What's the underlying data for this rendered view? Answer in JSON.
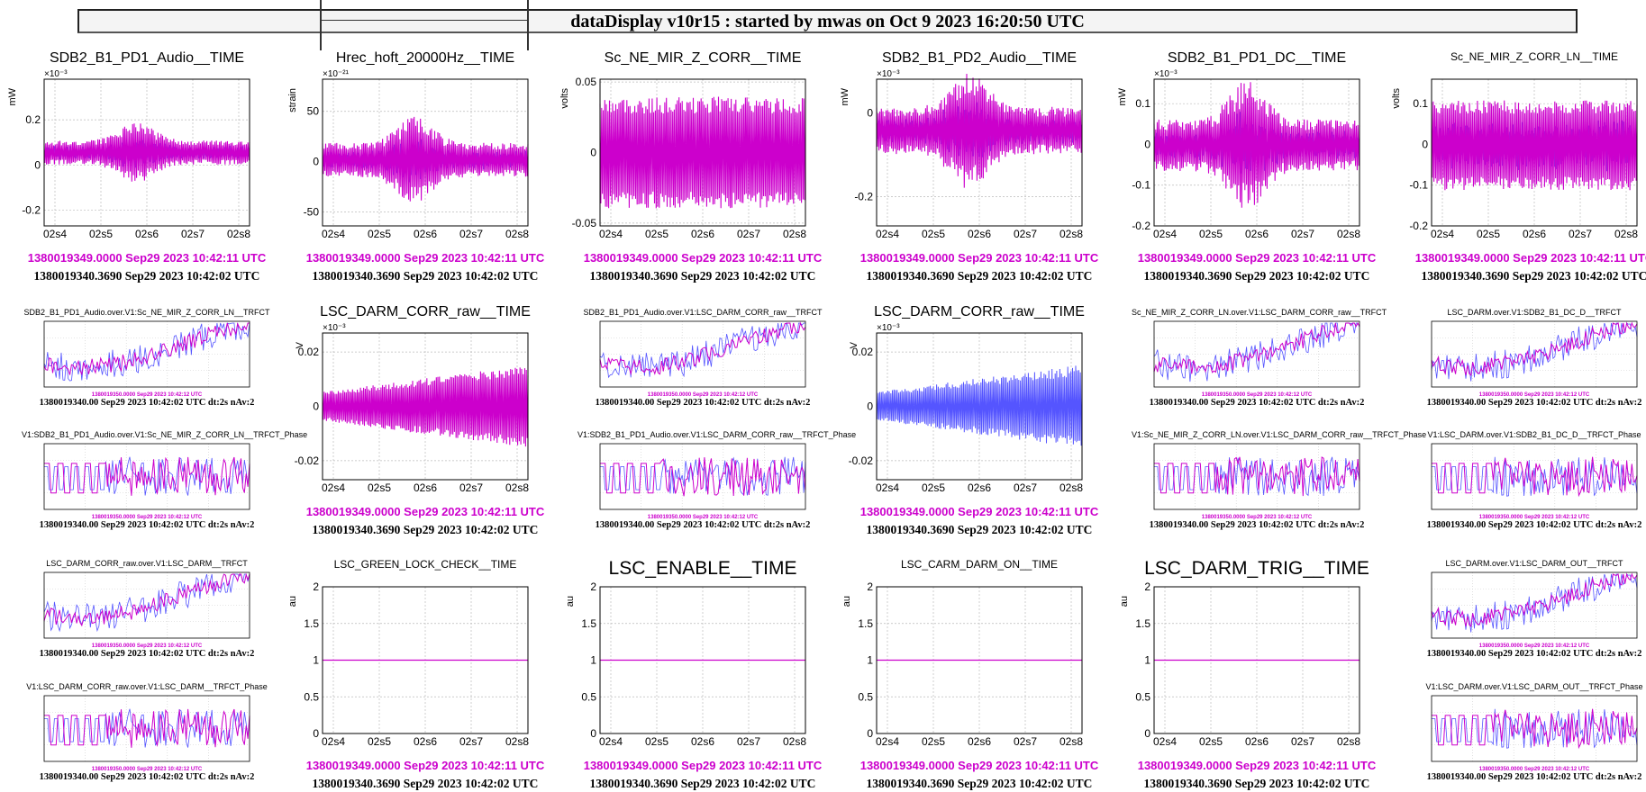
{
  "window": {
    "title": "dataDisplay v10r15 : started by mwas on Oct  9 2023 16:20:50 UTC"
  },
  "times": {
    "gps_magenta": "1380019349.0000 Sep29 2023 10:42:11 UTC",
    "gps_black": "1380019340.3690 Sep29 2023 10:42:02 UTC",
    "fft_magenta": "1380019350.0000 Sep29 2023 10:42:12 UTC",
    "fft_black": "1380019340.00 Sep29 2023 10:42:02 UTC dt:2s nAv:2"
  },
  "colors": {
    "primary": "#cc00cc",
    "reference": "#5555ff",
    "frame": "#000000",
    "grid": "#bbbbbb"
  },
  "time_xticks": [
    "02s4",
    "02s5",
    "02s6",
    "02s7",
    "02s8"
  ],
  "panels": {
    "p1": {
      "title": "SDB2_B1_PD1_Audio__TIME",
      "ylabel": "mW",
      "exponent": "×10⁻³"
    },
    "p2": {
      "title": "Hrec_hoft_20000Hz__TIME",
      "ylabel": "strain",
      "exponent": "×10⁻²¹"
    },
    "p3": {
      "title": "Sc_NE_MIR_Z_CORR__TIME",
      "ylabel": "volts"
    },
    "p4": {
      "title": "SDB2_B1_PD2_Audio__TIME",
      "ylabel": "mW",
      "exponent": "×10⁻³"
    },
    "p5": {
      "title": "SDB2_B1_PD1_DC__TIME",
      "ylabel": "mW",
      "exponent": "×10⁻³"
    },
    "p6": {
      "title": "Sc_NE_MIR_Z_CORR_LN__TIME",
      "ylabel": "volts"
    },
    "p7": {
      "title": "SDB2_B1_PD1_Audio.over.V1:Sc_NE_MIR_Z_CORR_LN__TRFCT"
    },
    "p8": {
      "title": "LSC_DARM_CORR_raw__TIME",
      "ylabel": "V",
      "exponent": "×10⁻³"
    },
    "p9": {
      "title": "SDB2_B1_PD1_Audio.over.V1:LSC_DARM_CORR_raw__TRFCT"
    },
    "p10": {
      "title": "LSC_DARM_CORR_raw__TIME",
      "ylabel": "V",
      "exponent": "×10⁻³"
    },
    "p11": {
      "title": "Sc_NE_MIR_Z_CORR_LN.over.V1:LSC_DARM_CORR_raw__TRFCT"
    },
    "p12": {
      "title": "LSC_DARM.over.V1:SDB2_B1_DC_D__TRFCT"
    },
    "p13": {
      "title": "V1:SDB2_B1_PD1_Audio.over.V1:Sc_NE_MIR_Z_CORR_LN__TRFCT_Phase"
    },
    "p14": {
      "title": "V1:SDB2_B1_PD1_Audio.over.V1:LSC_DARM_CORR_raw__TRFCT_Phase"
    },
    "p15": {
      "title": "V1:Sc_NE_MIR_Z_CORR_LN.over.V1:LSC_DARM_CORR_raw__TRFCT_Phase"
    },
    "p16": {
      "title": "V1:LSC_DARM.over.V1:SDB2_B1_DC_D__TRFCT_Phase"
    },
    "p17": {
      "title": "LSC_DARM_CORR_raw.over.V1:LSC_DARM__TRFCT"
    },
    "p18": {
      "title": "LSC_GREEN_LOCK_CHECK__TIME",
      "ylabel": "au"
    },
    "p19": {
      "title": "LSC_ENABLE__TIME",
      "ylabel": "au"
    },
    "p20": {
      "title": "LSC_CARM_DARM_ON__TIME",
      "ylabel": "au"
    },
    "p21": {
      "title": "LSC_DARM_TRIG__TIME",
      "ylabel": "au"
    },
    "p22": {
      "title": "LSC_DARM.over.V1:LSC_DARM_OUT__TRFCT"
    },
    "p23": {
      "title": "V1:LSC_DARM_CORR_raw.over.V1:LSC_DARM__TRFCT_Phase"
    },
    "p24": {
      "title": "V1:LSC_DARM.over.V1:LSC_DARM_OUT__TRFCT_Phase"
    }
  },
  "chart_data": [
    {
      "id": "p1",
      "type": "line",
      "ylim": [
        -0.27,
        0.38
      ],
      "yticks": [
        "0.2",
        "0",
        "-0.2"
      ],
      "envelope": {
        "series": "primary",
        "start": 0.12,
        "peak": 0.22,
        "burst": true
      }
    },
    {
      "id": "p2",
      "type": "line",
      "ylim": [
        -64,
        82
      ],
      "yticks": [
        "50",
        "0",
        "-50"
      ],
      "note": "burst of strain oscillation near 02s6"
    },
    {
      "id": "p3",
      "type": "line",
      "ylim": [
        -0.052,
        0.052
      ],
      "yticks": [
        "0.05",
        "0",
        "-0.05"
      ]
    },
    {
      "id": "p4",
      "type": "line",
      "ylim": [
        -0.27,
        0.08
      ],
      "yticks": [
        "0",
        "-0.2"
      ]
    },
    {
      "id": "p5",
      "type": "line",
      "ylim": [
        -0.2,
        0.16
      ],
      "yticks": [
        "0.1",
        "0",
        "-0.1",
        "-0.2"
      ]
    },
    {
      "id": "p6",
      "type": "line",
      "ylim": [
        -0.2,
        0.16
      ],
      "yticks": [
        "0.1",
        "0",
        "-0.1",
        "-0.2"
      ]
    },
    {
      "id": "p8",
      "type": "line",
      "ylim": [
        -0.027,
        0.027
      ],
      "yticks": [
        "0.02",
        "0",
        "-0.02"
      ]
    },
    {
      "id": "p10",
      "type": "line",
      "ylim": [
        -0.027,
        0.027
      ],
      "yticks": [
        "0.02",
        "0",
        "-0.02"
      ]
    },
    {
      "id": "p18",
      "type": "line",
      "ylim": [
        0,
        2
      ],
      "yticks": [
        "2",
        "1.5",
        "1",
        "0.5",
        "0"
      ],
      "value": 1
    },
    {
      "id": "p19",
      "type": "line",
      "ylim": [
        0,
        2
      ],
      "yticks": [
        "2",
        "1.5",
        "1",
        "0.5",
        "0"
      ],
      "value": 1
    },
    {
      "id": "p20",
      "type": "line",
      "ylim": [
        0,
        2
      ],
      "yticks": [
        "2",
        "1.5",
        "1",
        "0.5",
        "0"
      ],
      "value": 1
    },
    {
      "id": "p21",
      "type": "line",
      "ylim": [
        0,
        2
      ],
      "yticks": [
        "2",
        "1.5",
        "1",
        "0.5",
        "0"
      ],
      "value": 1
    }
  ]
}
